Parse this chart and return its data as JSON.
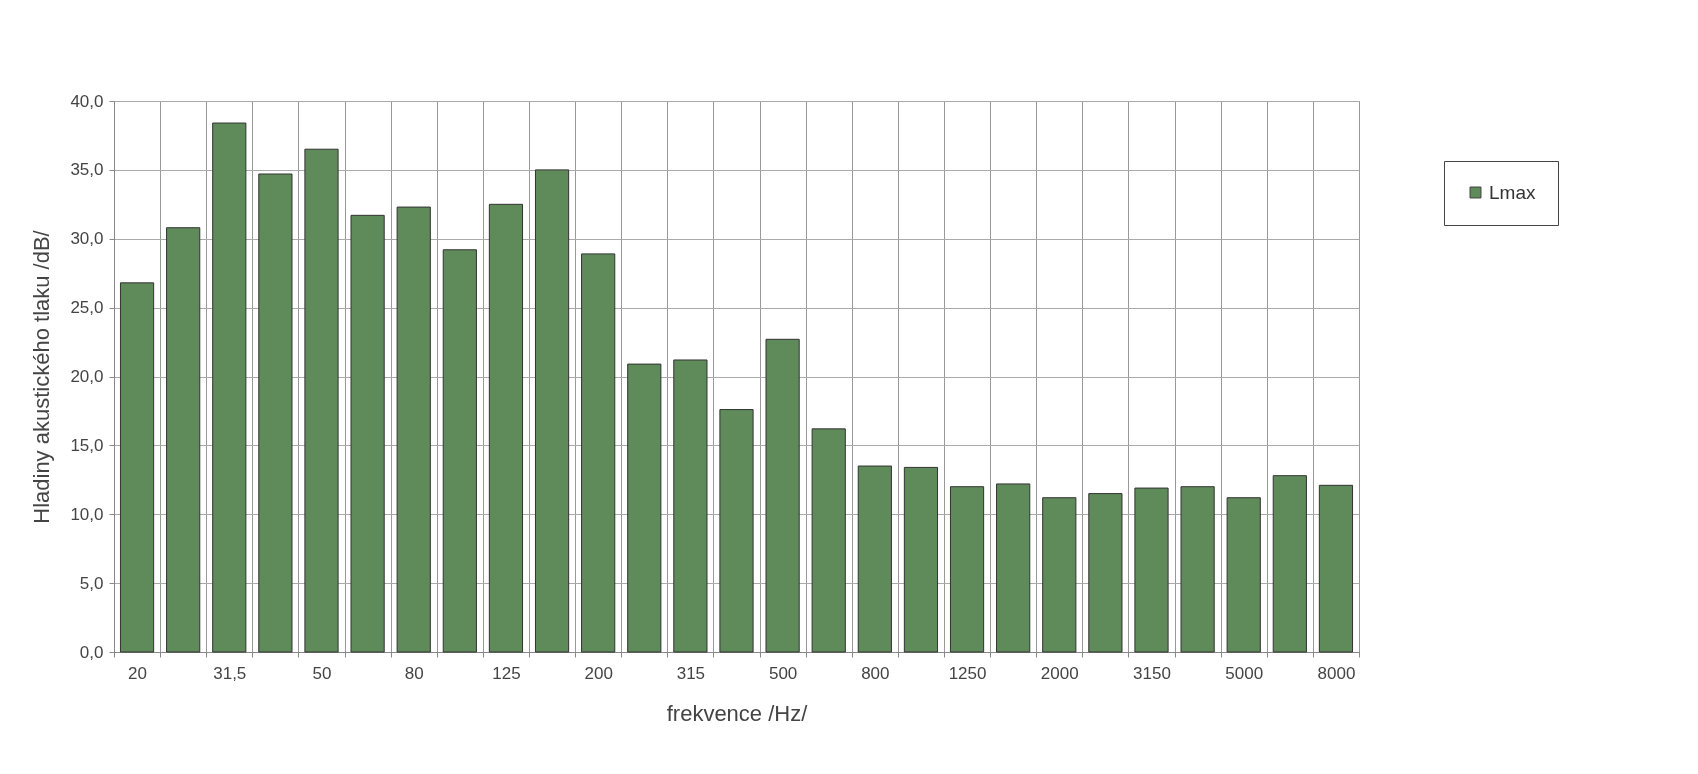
{
  "chart_data": {
    "type": "bar",
    "xlabel": "frekvence /Hz/",
    "ylabel": "Hladiny akustického tlaku /dB/",
    "categories": [
      "20",
      null,
      "31,5",
      null,
      "50",
      null,
      "80",
      null,
      "125",
      null,
      "200",
      null,
      "315",
      null,
      "500",
      null,
      "800",
      null,
      "1250",
      null,
      "2000",
      null,
      "3150",
      null,
      "5000",
      null,
      "8000"
    ],
    "series": [
      {
        "name": "Lmax",
        "color": "#5f8a5a",
        "values": [
          26.8,
          30.8,
          38.4,
          34.7,
          36.5,
          31.7,
          32.3,
          29.2,
          32.5,
          35.0,
          28.9,
          20.9,
          21.2,
          17.6,
          22.7,
          16.2,
          13.5,
          13.4,
          12.0,
          12.2,
          11.2,
          11.5,
          11.9,
          12.0,
          11.2,
          12.8,
          12.1
        ]
      }
    ],
    "ylim": [
      0,
      40
    ],
    "yticks": [
      {
        "value": 0,
        "label": "0,0"
      },
      {
        "value": 5,
        "label": "5,0"
      },
      {
        "value": 10,
        "label": "10,0"
      },
      {
        "value": 15,
        "label": "15,0"
      },
      {
        "value": 20,
        "label": "20,0"
      },
      {
        "value": 25,
        "label": "25,0"
      },
      {
        "value": 30,
        "label": "30,0"
      },
      {
        "value": 35,
        "label": "35,0"
      },
      {
        "value": 40,
        "label": "40,0"
      }
    ],
    "grid": true,
    "legend": "right"
  }
}
